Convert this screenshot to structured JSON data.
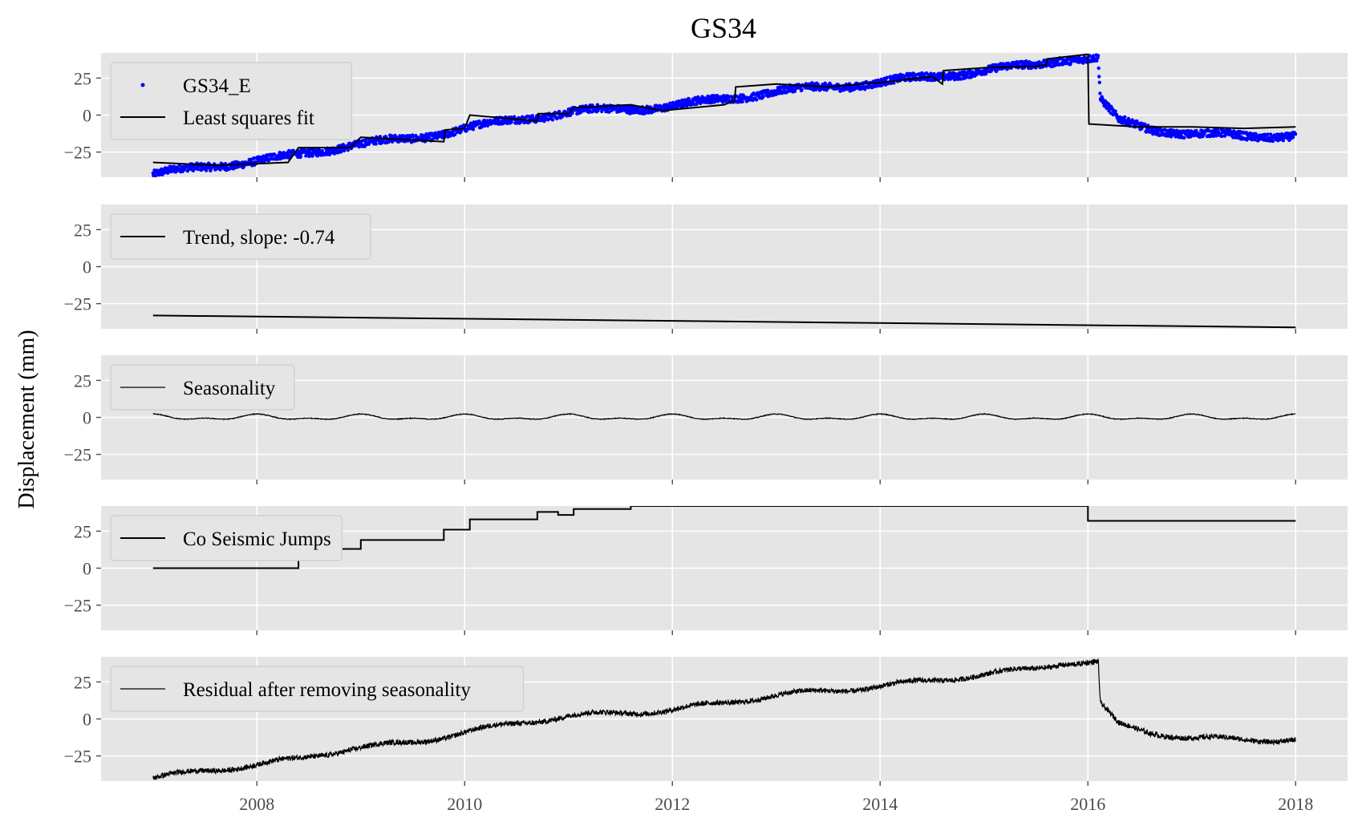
{
  "figure": {
    "title": "GS34",
    "ylabel": "Displacement (mm)",
    "background_color": "#e5e5e5",
    "grid_color": "#ffffff"
  },
  "chart_data": {
    "type": "line",
    "x_axis": {
      "range": [
        2006.5,
        2018.5
      ],
      "ticks": [
        2008,
        2010,
        2012,
        2014,
        2016,
        2018
      ],
      "tick_labels": [
        "2008",
        "2010",
        "2012",
        "2014",
        "2016",
        "2018"
      ]
    },
    "y_axis": {
      "range": [
        -42,
        42
      ],
      "ticks": [
        -25,
        0,
        25
      ],
      "tick_labels": [
        "−25",
        "0",
        "25"
      ]
    },
    "grid": true,
    "legend_placement": "upper-left",
    "panels": [
      {
        "legend": [
          {
            "label": "GS34_E",
            "marker": "dot",
            "color": "#0000ff"
          },
          {
            "label": "Least squares fit",
            "marker": "line",
            "color": "#000000"
          }
        ],
        "series": [
          {
            "name": "GS34_E",
            "kind": "scatter",
            "color": "#0000ff",
            "trend_anchors": [
              [
                2007.0,
                -40
              ],
              [
                2007.5,
                -35
              ],
              [
                2008.0,
                -31
              ],
              [
                2008.4,
                -27
              ],
              [
                2008.9,
                -20
              ],
              [
                2009.5,
                -16
              ],
              [
                2010.0,
                -9
              ],
              [
                2010.5,
                -3
              ],
              [
                2011.0,
                2
              ],
              [
                2011.5,
                4
              ],
              [
                2012.0,
                6
              ],
              [
                2012.5,
                11
              ],
              [
                2013.0,
                16
              ],
              [
                2013.5,
                19
              ],
              [
                2014.0,
                22
              ],
              [
                2014.5,
                26
              ],
              [
                2015.0,
                30
              ],
              [
                2015.5,
                34
              ],
              [
                2015.75,
                38
              ],
              [
                2016.1,
                38
              ],
              [
                2016.12,
                10
              ],
              [
                2016.3,
                -4
              ],
              [
                2016.6,
                -9
              ],
              [
                2017.0,
                -13
              ],
              [
                2017.5,
                -14
              ],
              [
                2018.0,
                -14
              ]
            ]
          },
          {
            "name": "Least squares fit",
            "kind": "line",
            "color": "#000000",
            "points": [
              [
                2007.0,
                -32
              ],
              [
                2007.6,
                -34
              ],
              [
                2008.3,
                -32
              ],
              [
                2008.4,
                -22
              ],
              [
                2008.9,
                -22
              ],
              [
                2009.0,
                -15
              ],
              [
                2009.8,
                -18
              ],
              [
                2009.81,
                -10
              ],
              [
                2010.0,
                -9
              ],
              [
                2010.05,
                0
              ],
              [
                2010.7,
                -4
              ],
              [
                2010.71,
                1
              ],
              [
                2011.0,
                1
              ],
              [
                2011.05,
                5
              ],
              [
                2011.6,
                7
              ],
              [
                2011.9,
                3
              ],
              [
                2012.5,
                7
              ],
              [
                2012.6,
                10
              ],
              [
                2012.61,
                19
              ],
              [
                2013.0,
                21
              ],
              [
                2013.5,
                19
              ],
              [
                2014.0,
                22
              ],
              [
                2014.5,
                26
              ],
              [
                2014.6,
                21
              ],
              [
                2014.61,
                30
              ],
              [
                2015.0,
                32
              ],
              [
                2015.5,
                33
              ],
              [
                2015.6,
                34
              ],
              [
                2015.61,
                38
              ],
              [
                2016.0,
                41
              ],
              [
                2016.01,
                -6
              ],
              [
                2016.5,
                -8
              ],
              [
                2017.0,
                -8
              ],
              [
                2017.5,
                -9
              ],
              [
                2018.0,
                -8
              ]
            ]
          }
        ]
      },
      {
        "legend": [
          {
            "label": "Trend, slope: -0.74",
            "marker": "line",
            "color": "#000000"
          }
        ],
        "series": [
          {
            "name": "Trend, slope: -0.74",
            "kind": "line",
            "color": "#000000",
            "points": [
              [
                2007.0,
                -33
              ],
              [
                2018.0,
                -41
              ]
            ]
          }
        ]
      },
      {
        "legend": [
          {
            "label": "Seasonality",
            "marker": "thinline",
            "color": "#000000"
          }
        ],
        "series": [
          {
            "name": "Seasonality",
            "kind": "seasonal",
            "color": "#000000",
            "x_range": [
              2007.0,
              2018.0
            ],
            "amplitude": 2,
            "period": 1
          }
        ]
      },
      {
        "legend": [
          {
            "label": "Co Seismic Jumps",
            "marker": "line",
            "color": "#000000"
          }
        ],
        "series": [
          {
            "name": "Co Seismic Jumps",
            "kind": "step",
            "color": "#000000",
            "points": [
              [
                2007.0,
                0
              ],
              [
                2008.4,
                0
              ],
              [
                2008.4,
                13
              ],
              [
                2009.0,
                13
              ],
              [
                2009.0,
                19
              ],
              [
                2009.8,
                19
              ],
              [
                2009.8,
                26
              ],
              [
                2010.05,
                26
              ],
              [
                2010.05,
                33
              ],
              [
                2010.7,
                33
              ],
              [
                2010.7,
                38
              ],
              [
                2010.9,
                38
              ],
              [
                2010.9,
                36
              ],
              [
                2011.05,
                36
              ],
              [
                2011.05,
                40
              ],
              [
                2011.6,
                40
              ],
              [
                2011.6,
                42
              ],
              [
                2011.95,
                42
              ],
              [
                2011.95,
                42
              ],
              [
                2016.0,
                42
              ],
              [
                2016.0,
                32
              ],
              [
                2018.0,
                32
              ]
            ]
          }
        ]
      },
      {
        "legend": [
          {
            "label": "Residual after removing seasonality",
            "marker": "thinline",
            "color": "#000000"
          }
        ],
        "series": [
          {
            "name": "Residual after removing seasonality",
            "kind": "line",
            "color": "#000000",
            "trend_anchors": [
              [
                2007.0,
                -40
              ],
              [
                2007.5,
                -35
              ],
              [
                2008.0,
                -31
              ],
              [
                2008.4,
                -27
              ],
              [
                2008.9,
                -20
              ],
              [
                2009.5,
                -16
              ],
              [
                2010.0,
                -9
              ],
              [
                2010.5,
                -3
              ],
              [
                2011.0,
                2
              ],
              [
                2011.5,
                4
              ],
              [
                2012.0,
                6
              ],
              [
                2012.5,
                11
              ],
              [
                2013.0,
                16
              ],
              [
                2013.5,
                19
              ],
              [
                2014.0,
                22
              ],
              [
                2014.5,
                26
              ],
              [
                2015.0,
                30
              ],
              [
                2015.5,
                34
              ],
              [
                2015.75,
                38
              ],
              [
                2016.1,
                38
              ],
              [
                2016.12,
                10
              ],
              [
                2016.3,
                -4
              ],
              [
                2016.6,
                -9
              ],
              [
                2017.0,
                -13
              ],
              [
                2017.5,
                -14
              ],
              [
                2018.0,
                -14
              ]
            ]
          }
        ]
      }
    ]
  }
}
